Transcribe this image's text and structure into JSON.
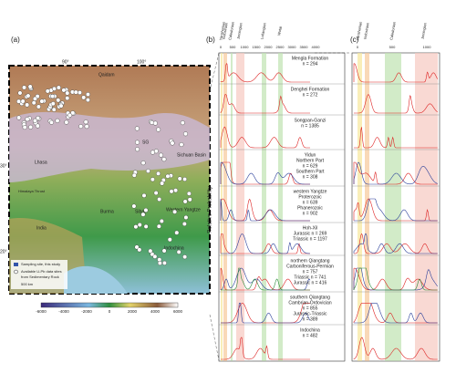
{
  "panel_a": {
    "label": "(a)",
    "lon_labels": [
      "90°",
      "100°"
    ],
    "lat_labels": [
      "30°",
      "20°"
    ],
    "places": [
      "Qaidam",
      "Lhasa",
      "Himalaya Thrust",
      "India",
      "Burma",
      "Sibao",
      "SG",
      "Sichuan Basin",
      "Western Yangtze",
      "Indochina"
    ],
    "legend": [
      "Sampling site, this study",
      "Available U-Pb data sites",
      "from Sedimentary Rock",
      "500 km"
    ],
    "colorbar_ticks": [
      "-6000",
      "-4000",
      "-2000",
      "0",
      "2000",
      "4000",
      "6000"
    ]
  },
  "panel_b": {
    "label": "(b)",
    "ticks": [
      "0",
      "500",
      "1000",
      "1500",
      "2000",
      "2500",
      "3000",
      "3500",
      "4000"
    ],
    "periods": [
      "Yanshanian",
      "Indosinian",
      "Caledonian",
      "Jinningian",
      "Lvliangian",
      "Wutai"
    ],
    "y_label": "Relative Probability"
  },
  "panel_c": {
    "label": "(c)",
    "ticks": [
      "0",
      "500",
      "1000"
    ],
    "periods": [
      "Yanshanian",
      "Indosinian",
      "Caledonian",
      "Jinningian"
    ]
  },
  "rows": [
    {
      "title": "Mengla Formation",
      "entries": [
        "n = 294"
      ]
    },
    {
      "title": "Denghei Formation",
      "entries": [
        "n = 272"
      ]
    },
    {
      "title": "Songpan-Ganzi",
      "entries": [
        "n = 1385"
      ]
    },
    {
      "title": "Yidun",
      "entries": [
        "Northern Part",
        "n = 629",
        "Southern Part",
        "n = 308"
      ]
    },
    {
      "title": "western Yangtze",
      "entries": [
        "Proterozoic",
        "n = 639",
        "Phanerozoic",
        "n = 902"
      ]
    },
    {
      "title": "Hoh-Xil",
      "entries": [
        "Jurassic  n = 269",
        "Triassic  n = 1197"
      ]
    },
    {
      "title": "northern Qiangtang",
      "entries": [
        "Carboniferous-Permian",
        "n = 757",
        "Triassic  n = 741",
        "Jurassic  n = 416"
      ]
    },
    {
      "title": "southern Qiangtang",
      "entries": [
        "Cambrian-Ordovician",
        "n = 855",
        "Jurassic-Triassic",
        "n = 389"
      ]
    },
    {
      "title": "Indochina",
      "entries": [
        "n = 482"
      ]
    }
  ]
}
